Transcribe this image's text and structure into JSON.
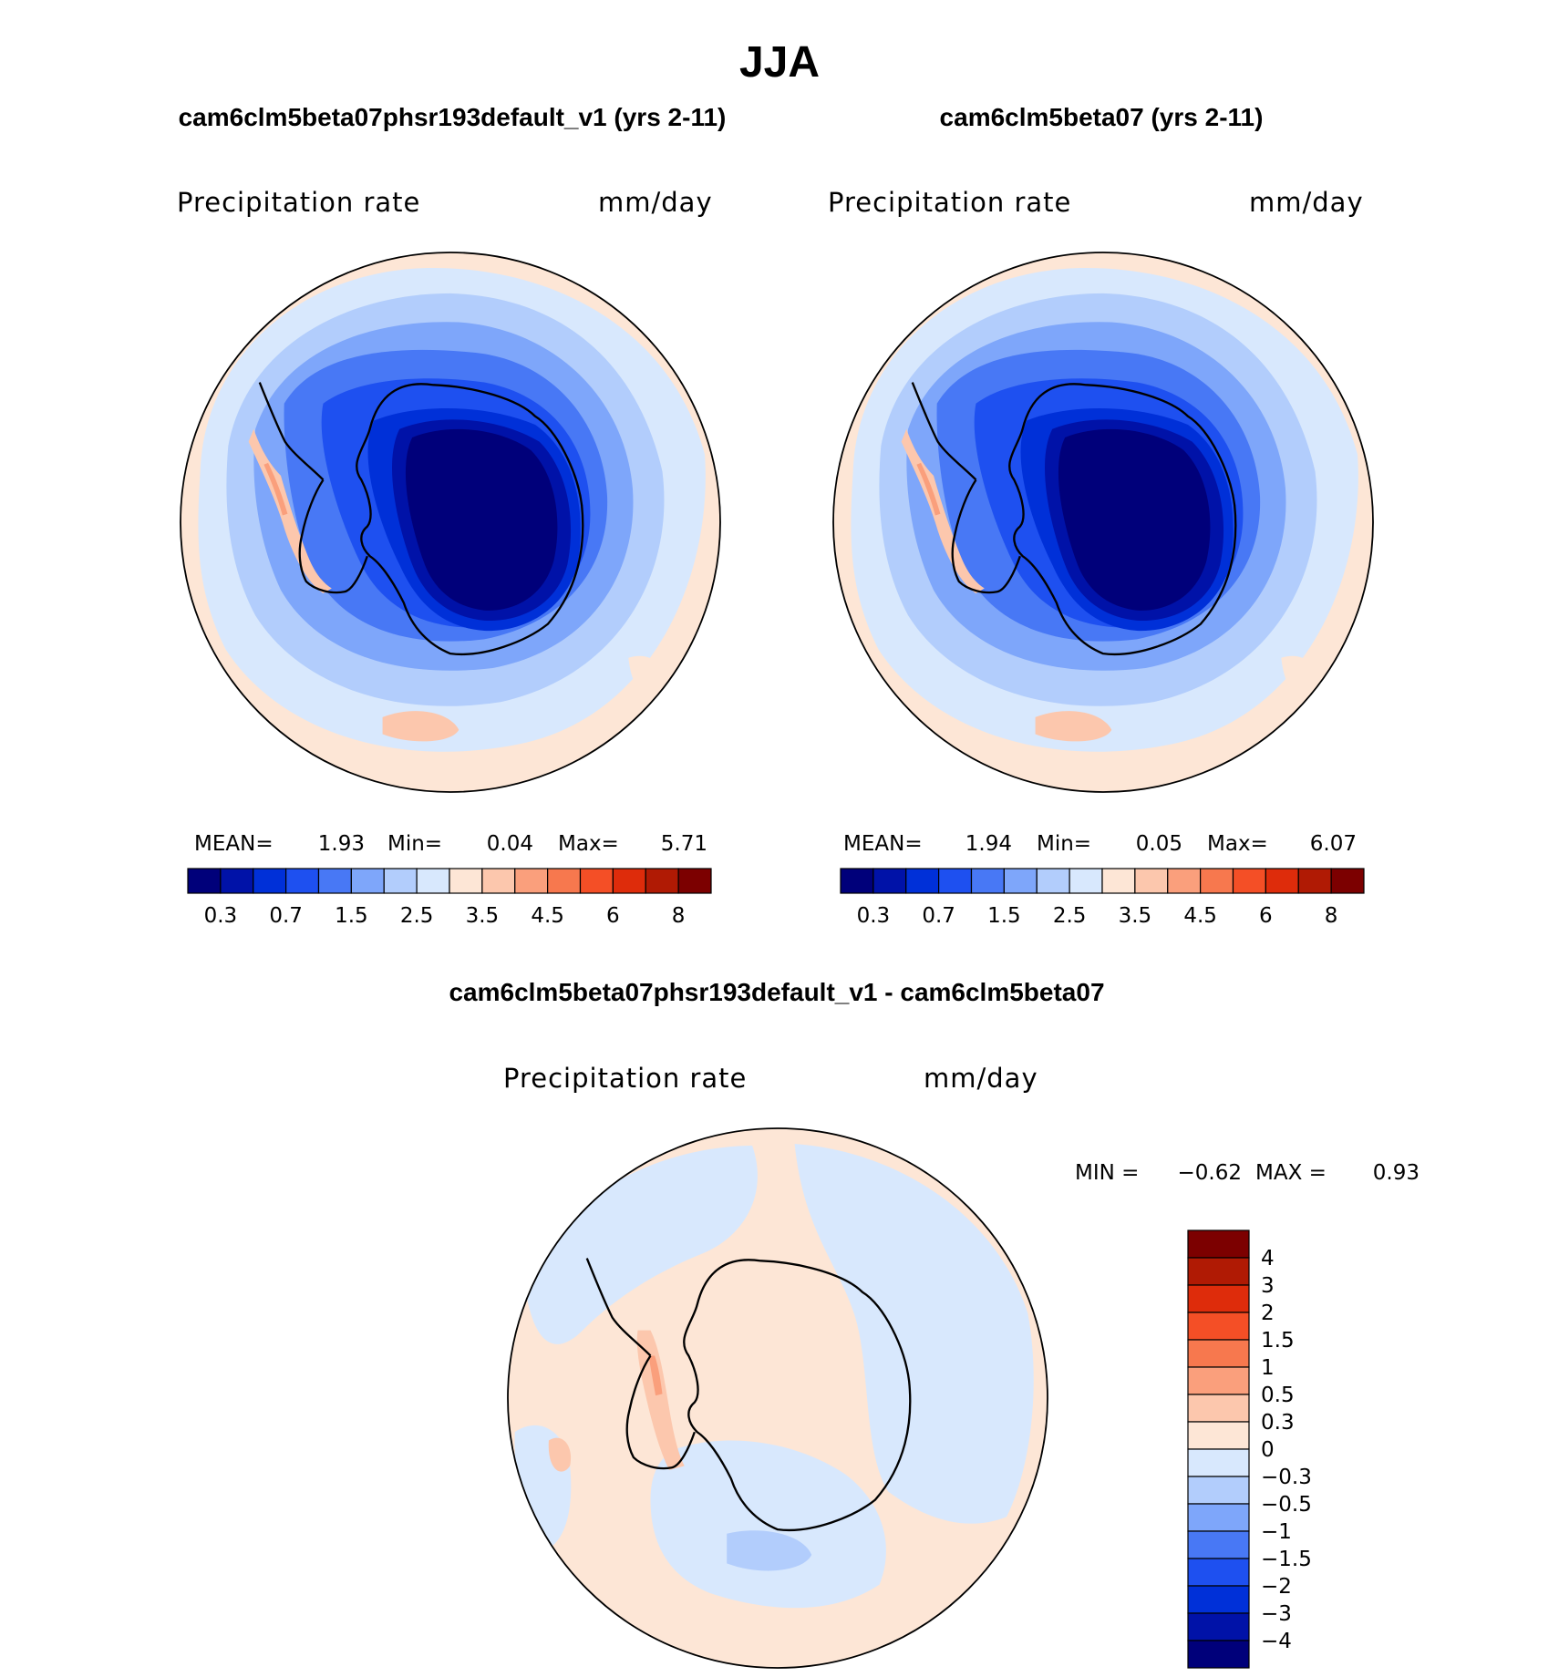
{
  "chart_data": {
    "type": "heatmap",
    "title": "JJA",
    "variable": "Precipitation rate",
    "units": "mm/day",
    "panels": [
      {
        "id": "model",
        "title": "cam6clm5beta07phsr193default_v1 (yrs 2-11)",
        "stats": {
          "mean_label": "MEAN=",
          "mean": "1.93",
          "min_label": "Min=",
          "min": "0.04",
          "max_label": "Max=",
          "max": "5.71"
        }
      },
      {
        "id": "control",
        "title": "cam6clm5beta07 (yrs 2-11)",
        "stats": {
          "mean_label": "MEAN=",
          "mean": "1.94",
          "min_label": "Min=",
          "min": "0.05",
          "max_label": "Max=",
          "max": "6.07"
        }
      },
      {
        "id": "difference",
        "title": "cam6clm5beta07phsr193default_v1 - cam6clm5beta07",
        "stats": {
          "min_label": "MIN =",
          "min": "−0.62",
          "max_label": "MAX =",
          "max": "0.93"
        }
      }
    ],
    "field_colorbar": {
      "colors": [
        "#00007a",
        "#0012a8",
        "#0030d8",
        "#1e50f0",
        "#4878f5",
        "#7ea6fa",
        "#b2cdfc",
        "#d8e8fd",
        "#fde6d6",
        "#fcc7ad",
        "#fa9f7c",
        "#f7784e",
        "#f44f26",
        "#de2c0b",
        "#b01a04",
        "#7c0000"
      ],
      "tick_labels": [
        "0.3",
        "0.7",
        "1.5",
        "2.5",
        "3.5",
        "4.5",
        "6",
        "8"
      ],
      "tick_boundaries": [
        1,
        3,
        5,
        7,
        9,
        11,
        13,
        15
      ]
    },
    "diff_colorbar": {
      "colors": [
        "#7c0000",
        "#b01a04",
        "#de2c0b",
        "#f44f26",
        "#f7784e",
        "#fa9f7c",
        "#fcc7ad",
        "#fde6d6",
        "#d8e8fd",
        "#b2cdfc",
        "#7ea6fa",
        "#4878f5",
        "#1e50f0",
        "#0030d8",
        "#0012a8",
        "#00007a"
      ],
      "levels": [
        "4",
        "3",
        "2",
        "1.5",
        "1",
        "0.5",
        "0.3",
        "0",
        "−0.3",
        "−0.5",
        "−1",
        "−1.5",
        "−2",
        "−3",
        "−4"
      ]
    }
  }
}
